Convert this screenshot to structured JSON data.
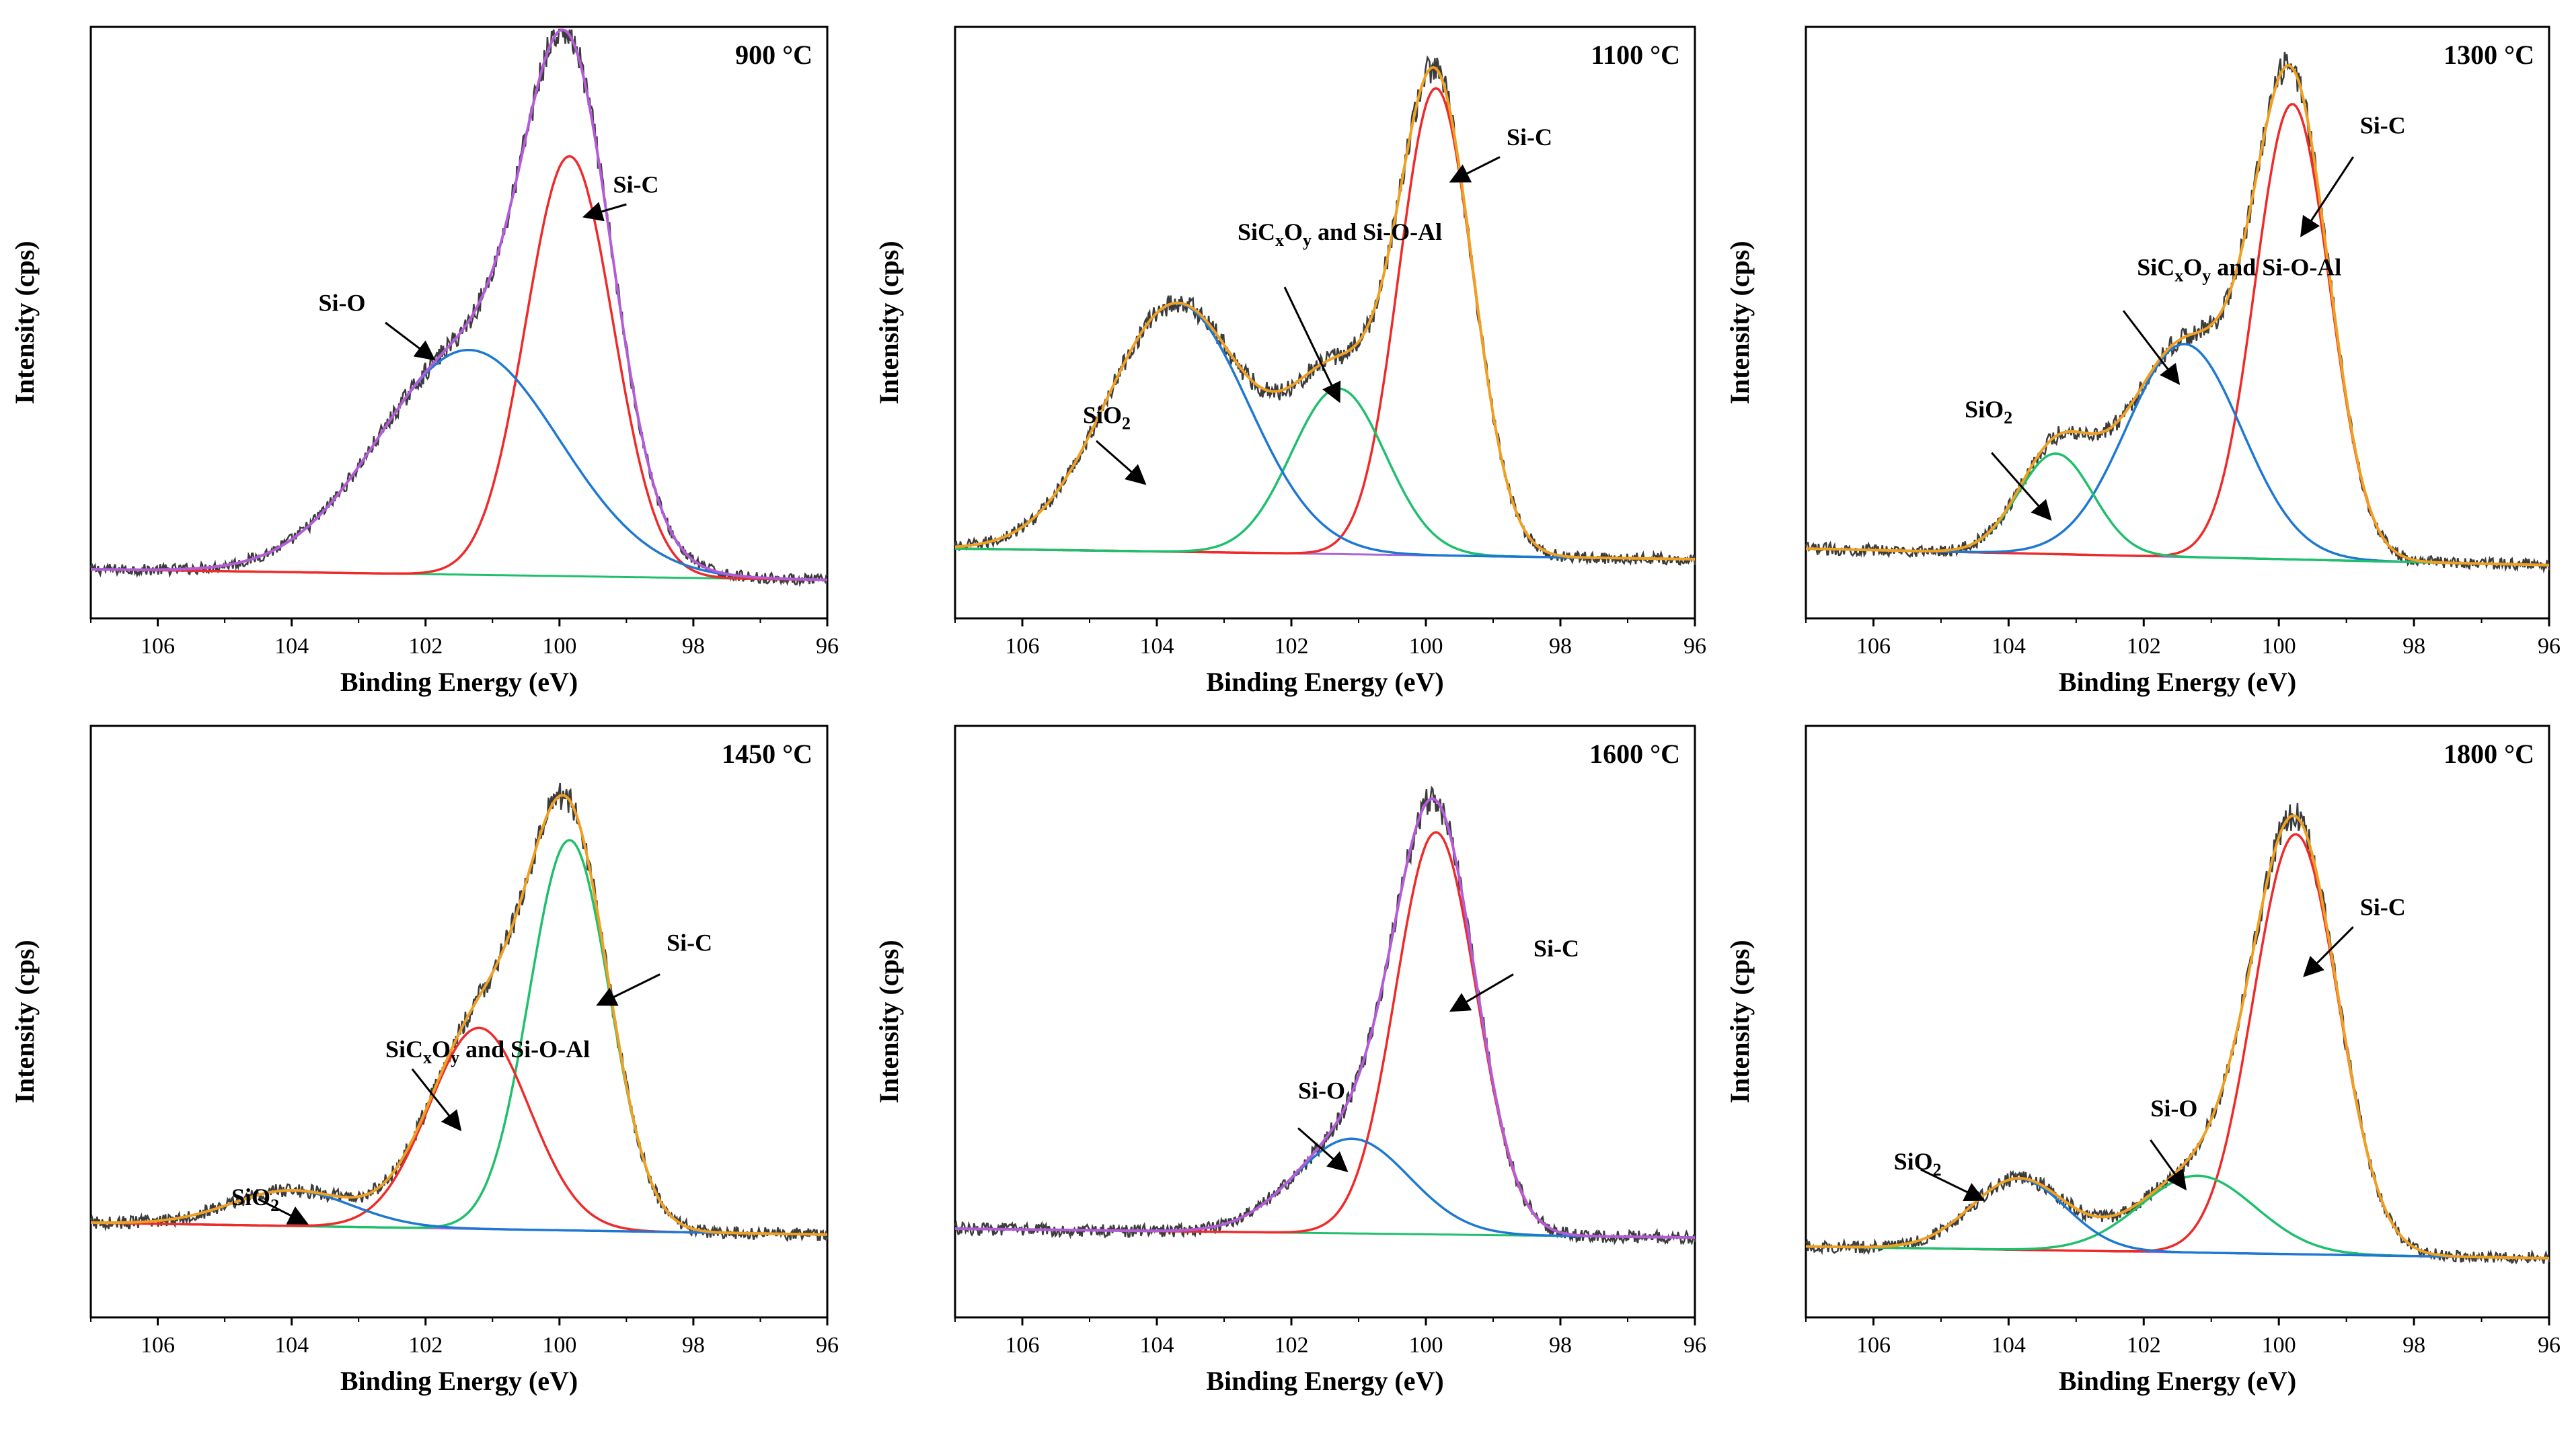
{
  "figure": {
    "panel_count": 6,
    "colors": {
      "raw": "#3c3c3c",
      "envelope_a": "#b45cd8",
      "envelope_b": "#f0a020",
      "red": "#ee2a2a",
      "blue": "#1e78d2",
      "green": "#1fbf6c",
      "purple": "#a868d8",
      "arrow": "#000000"
    }
  },
  "chart_data": [
    {
      "type": "line",
      "title": "900 °C",
      "xlabel": "Binding Energy (eV)",
      "ylabel": "Intensity (cps)",
      "xlim": [
        107,
        96
      ],
      "ylim": [
        0,
        1
      ],
      "xticks": [
        106,
        104,
        102,
        100,
        98,
        96
      ],
      "xtick_labels": [
        "106",
        "104",
        "102",
        "100",
        "98",
        "96"
      ],
      "envelope_color": "envelope_a",
      "background": {
        "color": "green",
        "start": 0.083,
        "end": 0.065
      },
      "components": [
        {
          "name": "Si-C",
          "color": "red",
          "center": 99.85,
          "height": 0.71,
          "width": 0.65
        },
        {
          "name": "Si-O",
          "color": "blue",
          "center": 101.35,
          "height": 0.38,
          "width": 1.35
        }
      ],
      "annotations": [
        {
          "text": "Si-C",
          "x": 99.2,
          "y": 0.72,
          "arrow_from": [
            99.0,
            0.7
          ],
          "arrow_to": [
            99.6,
            0.68
          ]
        },
        {
          "text": "Si-O",
          "x": 103.6,
          "y": 0.52,
          "arrow_from": [
            102.6,
            0.5
          ],
          "arrow_to": [
            101.9,
            0.44
          ]
        }
      ]
    },
    {
      "type": "line",
      "title": "1100 °C",
      "xlabel": "Binding Energy (eV)",
      "ylabel": "Intensity (cps)",
      "xlim": [
        107,
        96
      ],
      "ylim": [
        0,
        1
      ],
      "xticks": [
        106,
        104,
        102,
        100,
        98,
        96
      ],
      "xtick_labels": [
        "106",
        "104",
        "102",
        "100",
        "98",
        "96"
      ],
      "envelope_color": "envelope_b",
      "background": {
        "color": "purple",
        "start": 0.118,
        "end": 0.1
      },
      "components": [
        {
          "name": "Si-C",
          "color": "red",
          "center": 99.85,
          "height": 0.79,
          "width": 0.55
        },
        {
          "name": "SiCxOy and Si-O-Al",
          "color": "green",
          "center": 101.3,
          "height": 0.28,
          "width": 0.7
        },
        {
          "name": "SiO2",
          "color": "blue",
          "center": 103.7,
          "height": 0.42,
          "width": 1.05
        }
      ],
      "annotations": [
        {
          "text": "Si-C",
          "x": 98.8,
          "y": 0.8,
          "arrow_from": [
            98.9,
            0.78
          ],
          "arrow_to": [
            99.6,
            0.74
          ]
        },
        {
          "text": "SiCxOy and Si-O-Al",
          "x": 102.8,
          "y": 0.64,
          "arrow_from": [
            102.1,
            0.56
          ],
          "arrow_to": [
            101.3,
            0.37
          ]
        },
        {
          "text": "SiO2",
          "x": 105.1,
          "y": 0.33,
          "arrow_from": [
            104.9,
            0.3
          ],
          "arrow_to": [
            104.2,
            0.23
          ]
        }
      ]
    },
    {
      "type": "line",
      "title": "1300 °C",
      "xlabel": "Binding Energy (eV)",
      "ylabel": "Intensity (cps)",
      "xlim": [
        107,
        96
      ],
      "ylim": [
        0,
        1
      ],
      "xticks": [
        106,
        104,
        102,
        100,
        98,
        96
      ],
      "xtick_labels": [
        "106",
        "104",
        "102",
        "100",
        "98",
        "96"
      ],
      "envelope_color": "envelope_b",
      "background": {
        "color": "purple",
        "start": 0.118,
        "end": 0.09
      },
      "components": [
        {
          "name": "Si-C",
          "color": "red",
          "center": 99.8,
          "height": 0.77,
          "width": 0.55
        },
        {
          "name": "SiCxOy and Si-O-Al",
          "color": "blue",
          "center": 101.4,
          "height": 0.36,
          "width": 0.85
        },
        {
          "name": "SiO2",
          "color": "green",
          "center": 103.3,
          "height": 0.17,
          "width": 0.55
        }
      ],
      "annotations": [
        {
          "text": "Si-C",
          "x": 98.8,
          "y": 0.82,
          "arrow_from": [
            98.9,
            0.78
          ],
          "arrow_to": [
            99.65,
            0.65
          ]
        },
        {
          "text": "SiCxOy and Si-O-Al",
          "x": 102.1,
          "y": 0.58,
          "arrow_from": [
            102.3,
            0.52
          ],
          "arrow_to": [
            101.5,
            0.4
          ]
        },
        {
          "text": "SiO2",
          "x": 104.65,
          "y": 0.34,
          "arrow_from": [
            104.25,
            0.28
          ],
          "arrow_to": [
            103.4,
            0.17
          ]
        }
      ]
    },
    {
      "type": "line",
      "title": "1450 °C",
      "xlabel": "Binding Energy (eV)",
      "ylabel": "Intensity (cps)",
      "xlim": [
        107,
        96
      ],
      "ylim": [
        0,
        1
      ],
      "xticks": [
        106,
        104,
        102,
        100,
        98,
        96
      ],
      "xtick_labels": [
        "106",
        "104",
        "102",
        "100",
        "98",
        "96"
      ],
      "envelope_color": "envelope_b",
      "background": {
        "color": "purple",
        "start": 0.16,
        "end": 0.14
      },
      "components": [
        {
          "name": "Si-C",
          "color": "green",
          "center": 99.85,
          "height": 0.66,
          "width": 0.6
        },
        {
          "name": "SiCxOy and Si-O-Al",
          "color": "red",
          "center": 101.2,
          "height": 0.34,
          "width": 0.75
        },
        {
          "name": "SiO2",
          "color": "blue",
          "center": 104.0,
          "height": 0.06,
          "width": 0.9
        }
      ],
      "annotations": [
        {
          "text": "Si-C",
          "x": 98.4,
          "y": 0.62,
          "arrow_from": [
            98.5,
            0.58
          ],
          "arrow_to": [
            99.4,
            0.53
          ]
        },
        {
          "text": "SiCxOy and Si-O-Al",
          "x": 102.6,
          "y": 0.44,
          "arrow_from": [
            102.2,
            0.42
          ],
          "arrow_to": [
            101.5,
            0.32
          ]
        },
        {
          "text": "SiO2",
          "x": 104.9,
          "y": 0.19,
          "arrow_from": [
            104.5,
            0.2
          ],
          "arrow_to": [
            103.8,
            0.16
          ]
        }
      ]
    },
    {
      "type": "line",
      "title": "1600 °C",
      "xlabel": "Binding Energy (eV)",
      "ylabel": "Intensity (cps)",
      "xlim": [
        107,
        96
      ],
      "ylim": [
        0,
        1
      ],
      "xticks": [
        106,
        104,
        102,
        100,
        98,
        96
      ],
      "xtick_labels": [
        "106",
        "104",
        "102",
        "100",
        "98",
        "96"
      ],
      "envelope_color": "envelope_a",
      "background": {
        "color": "green",
        "start": 0.15,
        "end": 0.135
      },
      "components": [
        {
          "name": "Si-C",
          "color": "red",
          "center": 99.85,
          "height": 0.68,
          "width": 0.6
        },
        {
          "name": "Si-O",
          "color": "blue",
          "center": 101.1,
          "height": 0.16,
          "width": 0.85
        }
      ],
      "annotations": [
        {
          "text": "Si-C",
          "x": 98.4,
          "y": 0.61,
          "arrow_from": [
            98.7,
            0.58
          ],
          "arrow_to": [
            99.6,
            0.52
          ]
        },
        {
          "text": "Si-O",
          "x": 101.9,
          "y": 0.37,
          "arrow_from": [
            101.9,
            0.32
          ],
          "arrow_to": [
            101.2,
            0.25
          ]
        }
      ]
    },
    {
      "type": "line",
      "title": "1800 °C",
      "xlabel": "Binding Energy (eV)",
      "ylabel": "Intensity (cps)",
      "xlim": [
        107,
        96
      ],
      "ylim": [
        0,
        1
      ],
      "xticks": [
        106,
        104,
        102,
        100,
        98,
        96
      ],
      "xtick_labels": [
        "106",
        "104",
        "102",
        "100",
        "98",
        "96"
      ],
      "envelope_color": "envelope_b",
      "background": {
        "color": "purple",
        "start": 0.12,
        "end": 0.1
      },
      "components": [
        {
          "name": "Si-C",
          "color": "red",
          "center": 99.75,
          "height": 0.71,
          "width": 0.63
        },
        {
          "name": "Si-O",
          "color": "green",
          "center": 101.2,
          "height": 0.13,
          "width": 0.85
        },
        {
          "name": "SiO2",
          "color": "blue",
          "center": 103.85,
          "height": 0.12,
          "width": 0.7
        }
      ],
      "annotations": [
        {
          "text": "Si-C",
          "x": 98.8,
          "y": 0.68,
          "arrow_from": [
            98.9,
            0.66
          ],
          "arrow_to": [
            99.6,
            0.58
          ]
        },
        {
          "text": "Si-O",
          "x": 101.9,
          "y": 0.34,
          "arrow_from": [
            101.9,
            0.3
          ],
          "arrow_to": [
            101.4,
            0.22
          ]
        },
        {
          "text": "SiO2",
          "x": 105.7,
          "y": 0.25,
          "arrow_from": [
            105.3,
            0.25
          ],
          "arrow_to": [
            104.4,
            0.2
          ]
        }
      ]
    }
  ]
}
